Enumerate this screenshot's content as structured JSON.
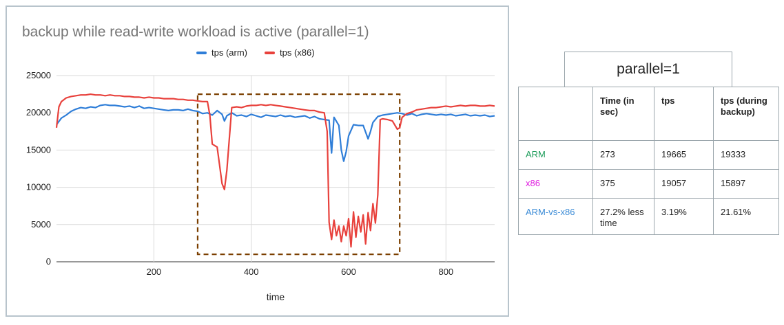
{
  "chart_data": {
    "type": "line",
    "title": "backup while read-write workload is active (parallel=1)",
    "xlabel": "time",
    "ylabel": "",
    "xlim": [
      0,
      900
    ],
    "ylim": [
      0,
      25000
    ],
    "x_ticks": [
      200,
      400,
      600,
      800
    ],
    "y_ticks": [
      0,
      5000,
      10000,
      15000,
      20000,
      25000
    ],
    "grid": true,
    "legend": "top",
    "annotation": {
      "type": "dashed-rectangle",
      "x": [
        290,
        705
      ],
      "y": [
        1000,
        22500
      ],
      "color": "#7b3f00"
    },
    "series": [
      {
        "name": "tps (arm)",
        "color": "#2f7ed8",
        "x": [
          0,
          10,
          20,
          30,
          40,
          50,
          60,
          70,
          80,
          90,
          100,
          110,
          120,
          130,
          140,
          150,
          160,
          170,
          180,
          190,
          200,
          210,
          220,
          230,
          240,
          250,
          260,
          270,
          280,
          290,
          300,
          310,
          320,
          330,
          340,
          345,
          350,
          360,
          370,
          380,
          390,
          400,
          410,
          420,
          430,
          440,
          450,
          460,
          470,
          480,
          490,
          500,
          510,
          520,
          530,
          540,
          550,
          560,
          565,
          570,
          580,
          585,
          590,
          595,
          600,
          610,
          620,
          630,
          640,
          645,
          650,
          660,
          670,
          680,
          690,
          700,
          710,
          720,
          730,
          740,
          750,
          760,
          770,
          780,
          790,
          800,
          810,
          820,
          830,
          840,
          850,
          860,
          870,
          880,
          890,
          900
        ],
        "values": [
          18400,
          19300,
          19700,
          20200,
          20500,
          20700,
          20600,
          20800,
          20700,
          21000,
          21100,
          21000,
          21000,
          20900,
          20800,
          20900,
          20700,
          20900,
          20600,
          20700,
          20600,
          20500,
          20400,
          20300,
          20400,
          20400,
          20300,
          20500,
          20300,
          20200,
          19900,
          20000,
          19700,
          20300,
          19800,
          18900,
          19600,
          20000,
          19600,
          19700,
          19500,
          19800,
          19600,
          19400,
          19700,
          19600,
          19500,
          19700,
          19500,
          19600,
          19400,
          19500,
          19600,
          19300,
          19500,
          19200,
          19100,
          19000,
          14600,
          19400,
          18300,
          15000,
          13500,
          14800,
          16900,
          18400,
          18300,
          18300,
          16500,
          17500,
          18700,
          19500,
          19700,
          19800,
          19900,
          20000,
          19900,
          19700,
          19900,
          19600,
          19800,
          19900,
          19800,
          19700,
          19800,
          19700,
          19800,
          19600,
          19700,
          19800,
          19600,
          19700,
          19600,
          19700,
          19500,
          19600
        ]
      },
      {
        "name": "tps (x86)",
        "color": "#e8413c",
        "x": [
          0,
          5,
          10,
          20,
          30,
          40,
          50,
          60,
          70,
          80,
          90,
          100,
          110,
          120,
          130,
          140,
          150,
          160,
          170,
          180,
          190,
          200,
          210,
          220,
          230,
          240,
          250,
          260,
          270,
          280,
          290,
          300,
          310,
          315,
          320,
          330,
          335,
          340,
          345,
          350,
          360,
          370,
          380,
          390,
          400,
          410,
          420,
          430,
          440,
          450,
          460,
          470,
          480,
          490,
          500,
          510,
          520,
          530,
          540,
          550,
          556,
          560,
          565,
          570,
          575,
          580,
          585,
          590,
          595,
          600,
          605,
          610,
          615,
          620,
          625,
          630,
          635,
          640,
          645,
          650,
          655,
          660,
          665,
          670,
          680,
          690,
          700,
          705,
          710,
          720,
          730,
          740,
          750,
          760,
          770,
          780,
          790,
          800,
          810,
          820,
          830,
          840,
          850,
          860,
          870,
          880,
          890,
          900
        ],
        "values": [
          18000,
          20800,
          21500,
          22000,
          22200,
          22300,
          22400,
          22400,
          22500,
          22400,
          22400,
          22300,
          22400,
          22300,
          22300,
          22200,
          22200,
          22100,
          22100,
          22000,
          22100,
          22000,
          22000,
          21900,
          21900,
          21900,
          21800,
          21800,
          21700,
          21700,
          21600,
          21500,
          21500,
          19700,
          15800,
          15400,
          13000,
          10500,
          9700,
          12300,
          20700,
          20800,
          20700,
          20900,
          21000,
          21000,
          21100,
          21000,
          21100,
          21000,
          20900,
          20800,
          20700,
          20600,
          20500,
          20400,
          20300,
          20300,
          20100,
          20000,
          17500,
          5300,
          3000,
          5600,
          3500,
          4800,
          2700,
          4800,
          3500,
          5800,
          2000,
          6700,
          3300,
          6100,
          4000,
          6300,
          2400,
          6600,
          4200,
          7800,
          5200,
          9000,
          19100,
          19200,
          19100,
          18900,
          17800,
          18000,
          19400,
          19900,
          20100,
          20400,
          20500,
          20600,
          20700,
          20700,
          20800,
          20900,
          20800,
          20900,
          21000,
          20900,
          21000,
          21000,
          20900,
          20900,
          21000,
          20900
        ]
      }
    ]
  },
  "parallel_box": {
    "label": "parallel=1"
  },
  "table": {
    "headers": [
      "",
      "Time (in sec)",
      "tps",
      "tps (during backup)"
    ],
    "rows": [
      {
        "label": "ARM",
        "label_color": "#1e9d5b",
        "cells": [
          "273",
          "19665",
          "19333"
        ]
      },
      {
        "label": "x86",
        "label_color": "#e020e0",
        "cells": [
          "375",
          "19057",
          "15897"
        ]
      },
      {
        "label": "ARM-vs-x86",
        "label_color": "#3b8bd6",
        "cells": [
          "27.2% less time",
          "3.19%",
          "21.61%"
        ]
      }
    ]
  }
}
